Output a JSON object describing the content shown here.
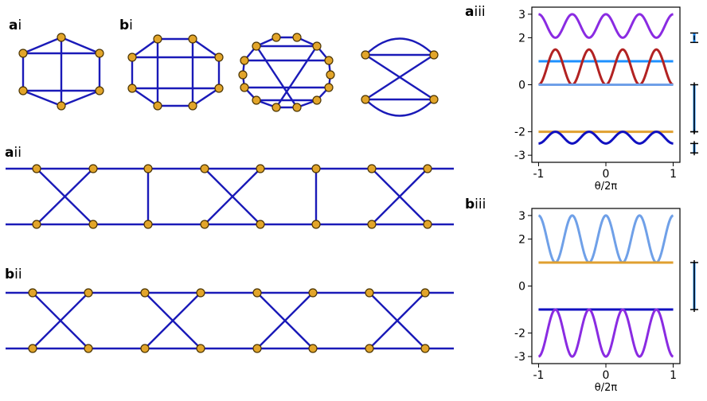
{
  "panel_labels": {
    "ai": {
      "letter": "a",
      "roman": "i"
    },
    "bi": {
      "letter": "b",
      "roman": "i"
    },
    "aii": {
      "letter": "a",
      "roman": "ii"
    },
    "bii": {
      "letter": "b",
      "roman": "ii"
    },
    "aiii": {
      "letter": "a",
      "roman": "iii"
    },
    "biii": {
      "letter": "b",
      "roman": "iii"
    }
  },
  "colors": {
    "edge": "#1a1ab8",
    "node_fill": "#e2a52a",
    "node_stroke": "#4a3300",
    "marker_line": "#1e90ff"
  },
  "chart_data": [
    {
      "id": "aiii",
      "type": "line",
      "xlabel": "θ/2π",
      "ylabel": "",
      "xlim": [
        -1.1,
        1.1
      ],
      "ylim": [
        -3.3,
        3.3
      ],
      "xticks": [
        -1,
        0,
        1
      ],
      "xtick_labels": [
        "-1",
        "0",
        "1"
      ],
      "yticks": [
        3,
        2,
        0,
        -2,
        -3
      ],
      "ytick_labels": [
        "3",
        "2",
        "0",
        "-2",
        "-3"
      ],
      "grid": false,
      "series": [
        {
          "color": "#8a2be2",
          "formula": "cos4",
          "a": 2.5,
          "b": 0.5
        },
        {
          "color": "#1e90ff",
          "formula": "const",
          "a": 1.0,
          "b": 0
        },
        {
          "color": "#b22222",
          "formula": "cos4",
          "a": 0.75,
          "b": -0.75
        },
        {
          "color": "#6fa0e8",
          "formula": "const",
          "a": 0.0,
          "b": 0
        },
        {
          "color": "#e0a030",
          "formula": "const",
          "a": -2.0,
          "b": 0
        },
        {
          "color": "#1010c0",
          "formula": "cos4",
          "a": -2.25,
          "b": -0.25
        }
      ],
      "side_markers": [
        {
          "y": 2.0,
          "ticks": [
            1.8,
            2.2
          ],
          "segment": [
            1.8,
            2.2
          ]
        },
        {
          "y": 0.0,
          "ticks": [
            0.0,
            -2.0
          ],
          "segment": [
            0.0,
            -2.0
          ]
        },
        {
          "y": -2.0,
          "ticks": [
            -2.0
          ],
          "segment": [
            -2.0,
            -2.0
          ]
        },
        {
          "y": -2.7,
          "ticks": [
            -2.5,
            -2.9
          ],
          "segment": [
            -2.5,
            -2.9
          ]
        }
      ]
    },
    {
      "id": "biii",
      "type": "line",
      "xlabel": "θ/2π",
      "ylabel": "",
      "xlim": [
        -1.1,
        1.1
      ],
      "ylim": [
        -3.3,
        3.3
      ],
      "xticks": [
        -1,
        0,
        1
      ],
      "xtick_labels": [
        "-1",
        "0",
        "1"
      ],
      "yticks": [
        3,
        2,
        0,
        -2,
        -3
      ],
      "ytick_labels": [
        "3",
        "2",
        "0",
        "-2",
        "-3"
      ],
      "grid": false,
      "series": [
        {
          "color": "#6fa0e8",
          "formula": "cos4",
          "a": 2.0,
          "b": 1.0
        },
        {
          "color": "#e0a030",
          "formula": "const",
          "a": 1.0,
          "b": 0
        },
        {
          "color": "#1010c0",
          "formula": "const",
          "a": -1.0,
          "b": 0
        },
        {
          "color": "#8a2be2",
          "formula": "cos4",
          "a": -2.0,
          "b": -1.0
        }
      ],
      "side_markers": [
        {
          "y": 1.0,
          "ticks": [
            1.0,
            -1.0
          ],
          "segment": [
            1.0,
            -1.0
          ]
        }
      ]
    }
  ]
}
